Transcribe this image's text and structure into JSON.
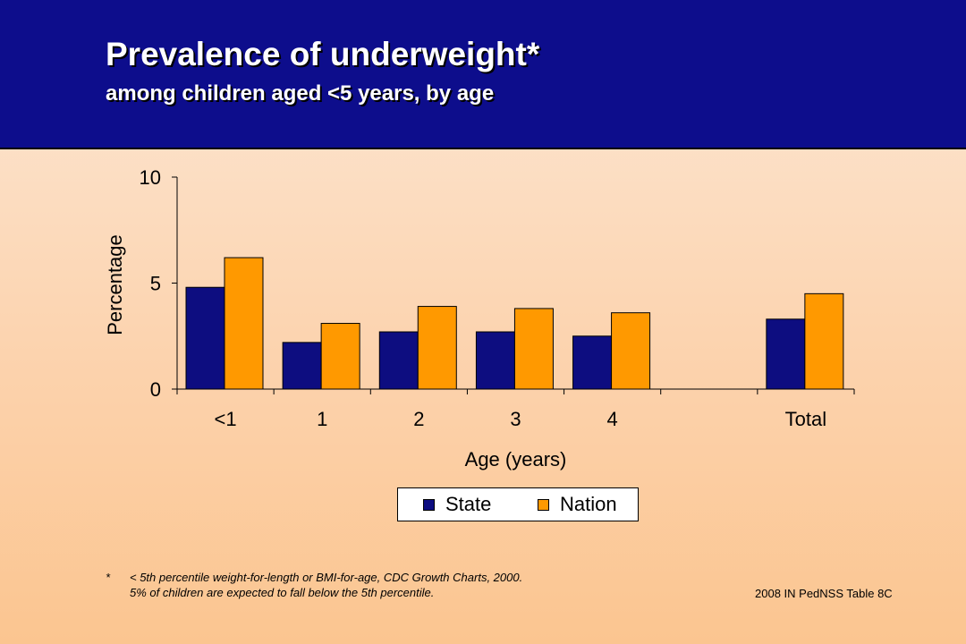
{
  "header": {
    "title": "Prevalence of underweight*",
    "subtitle": "among children aged <5 years, by age"
  },
  "colors": {
    "header_bg": "#0d0d8c",
    "state": "#0d0d80",
    "nation": "#ff9900"
  },
  "chart_data": {
    "type": "bar",
    "categories": [
      "<1",
      "1",
      "2",
      "3",
      "4",
      "",
      "Total"
    ],
    "series": [
      {
        "name": "State",
        "values": [
          4.8,
          2.2,
          2.7,
          2.7,
          2.5,
          null,
          3.3
        ]
      },
      {
        "name": "Nation",
        "values": [
          6.2,
          3.1,
          3.9,
          3.8,
          3.6,
          null,
          4.5
        ]
      }
    ],
    "xlabel": "Age (years)",
    "ylabel": "Percentage",
    "ylim": [
      0,
      10
    ],
    "yticks": [
      "0",
      "5",
      "10"
    ],
    "grid": false,
    "legend_position": "bottom"
  },
  "legend": {
    "state_label": "State",
    "nation_label": "Nation"
  },
  "footnote": {
    "marker": "*",
    "line1": "< 5th percentile weight-for-length or BMI-for-age, CDC Growth Charts, 2000.",
    "line2": "5% of children are expected to fall below the 5th percentile."
  },
  "source": "2008 IN PedNSS Table 8C"
}
